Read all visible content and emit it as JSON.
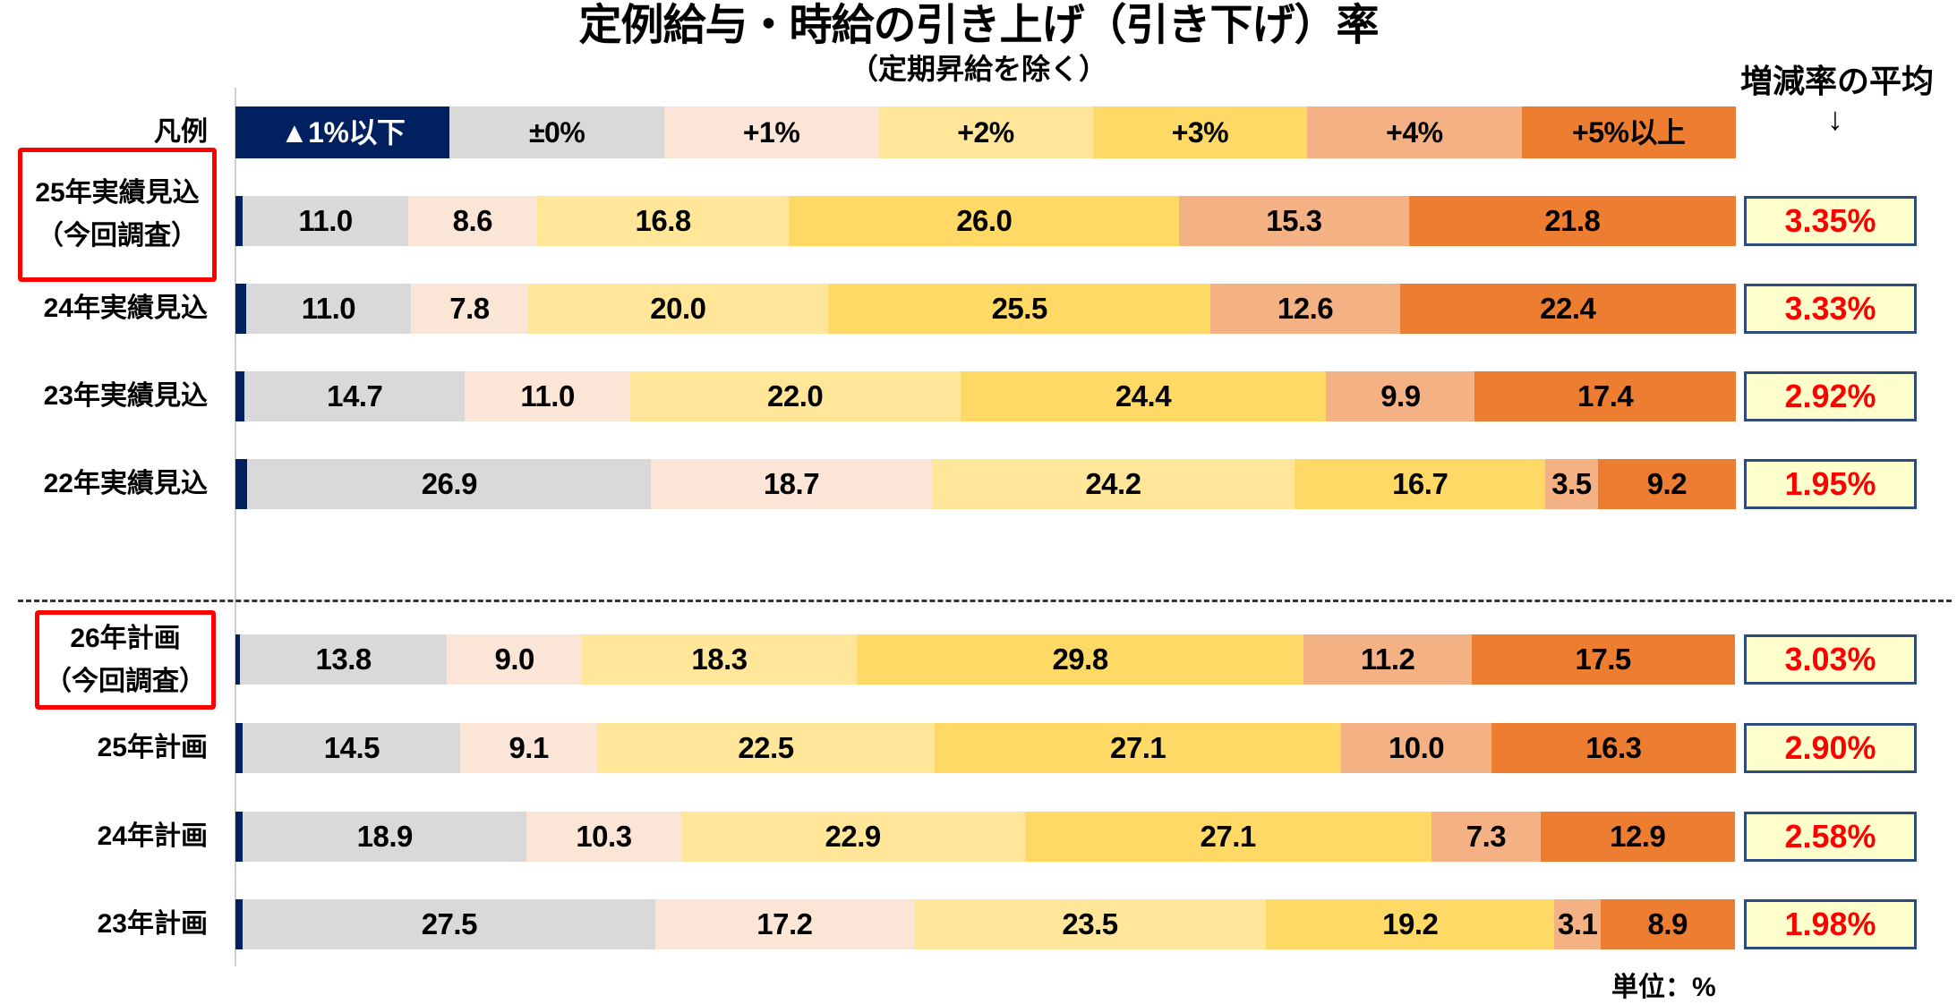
{
  "chart_data": {
    "type": "bar",
    "orientation": "horizontal-stacked-100",
    "title": "定例給与・時給の引き上げ（引き下げ）率",
    "subtitle": "（定期昇給を除く）",
    "legend_label": "凡例",
    "legend": [
      {
        "name": "▲1%以下",
        "color": "#002060",
        "text_color": "#ffffff"
      },
      {
        "name": "±0%",
        "color": "#d9d9d9",
        "text_color": "#000000"
      },
      {
        "name": "+1%",
        "color": "#fbe5d6",
        "text_color": "#000000"
      },
      {
        "name": "+2%",
        "color": "#ffe699",
        "text_color": "#000000"
      },
      {
        "name": "+3%",
        "color": "#ffd966",
        "text_color": "#000000"
      },
      {
        "name": "+4%",
        "color": "#f4b183",
        "text_color": "#000000"
      },
      {
        "name": "+5%以上",
        "color": "#ed7d31",
        "text_color": "#000000"
      }
    ],
    "legend_placement": "top",
    "average_header": "増減率の平均",
    "average_arrow": "↓",
    "unit": "単位：%",
    "groups": [
      {
        "rows": [
          {
            "label": [
              "25年実績見込",
              "（今回調査）"
            ],
            "highlighted": true,
            "values": [
              0.5,
              11.0,
              8.6,
              16.8,
              26.0,
              15.3,
              21.8
            ],
            "labels": [
              "0.5",
              "11.0",
              "8.6",
              "16.8",
              "26.0",
              "15.3",
              "21.8"
            ],
            "average": "3.35%"
          },
          {
            "label": [
              "24年実績見込"
            ],
            "highlighted": false,
            "values": [
              0.7,
              11.0,
              7.8,
              20.0,
              25.5,
              12.6,
              22.4
            ],
            "labels": [
              "0.7",
              "11.0",
              "7.8",
              "20.0",
              "25.5",
              "12.6",
              "22.4"
            ],
            "average": "3.33%"
          },
          {
            "label": [
              "23年実績見込"
            ],
            "highlighted": false,
            "values": [
              0.6,
              14.7,
              11.0,
              22.0,
              24.4,
              9.9,
              17.4
            ],
            "labels": [
              "0.6",
              "14.7",
              "11.0",
              "22.0",
              "24.4",
              "9.9",
              "17.4"
            ],
            "average": "2.92%"
          },
          {
            "label": [
              "22年実績見込"
            ],
            "highlighted": false,
            "values": [
              0.8,
              26.9,
              18.7,
              24.2,
              16.7,
              3.5,
              9.2
            ],
            "labels": [
              "0.8",
              "26.9",
              "18.7",
              "24.2",
              "16.7",
              "3.5",
              "9.2"
            ],
            "average": "1.95%"
          }
        ]
      },
      {
        "rows": [
          {
            "label": [
              "26年計画",
              "（今回調査）"
            ],
            "highlighted": true,
            "values": [
              0.3,
              13.8,
              9.0,
              18.3,
              29.8,
              11.2,
              17.5
            ],
            "labels": [
              "0.3",
              "13.8",
              "9.0",
              "18.3",
              "29.8",
              "11.2",
              "17.5"
            ],
            "average": "3.03%"
          },
          {
            "label": [
              "25年計画"
            ],
            "highlighted": false,
            "values": [
              0.5,
              14.5,
              9.1,
              22.5,
              27.1,
              10.0,
              16.3
            ],
            "labels": [
              "0.5",
              "14.5",
              "9.1",
              "22.5",
              "27.1",
              "10.0",
              "16.3"
            ],
            "average": "2.90%"
          },
          {
            "label": [
              "24年計画"
            ],
            "highlighted": false,
            "values": [
              0.5,
              18.9,
              10.3,
              22.9,
              27.1,
              7.3,
              12.9
            ],
            "labels": [
              "0.5",
              "18.9",
              "10.3",
              "22.9",
              "27.1",
              "7.3",
              "12.9"
            ],
            "average": "2.58%"
          },
          {
            "label": [
              "23年計画"
            ],
            "highlighted": false,
            "values": [
              0.5,
              27.5,
              17.2,
              23.5,
              19.2,
              3.1,
              8.9
            ],
            "labels": [
              "0.5",
              "27.5",
              "17.2",
              "23.5",
              "19.2",
              "3.1",
              "8.9"
            ],
            "average": "1.98%"
          }
        ]
      }
    ],
    "xlim": [
      0,
      100
    ],
    "highlight_color": "#ff0000",
    "average_text_color": "#ff0000",
    "average_box_fill": "#ffffcc"
  }
}
